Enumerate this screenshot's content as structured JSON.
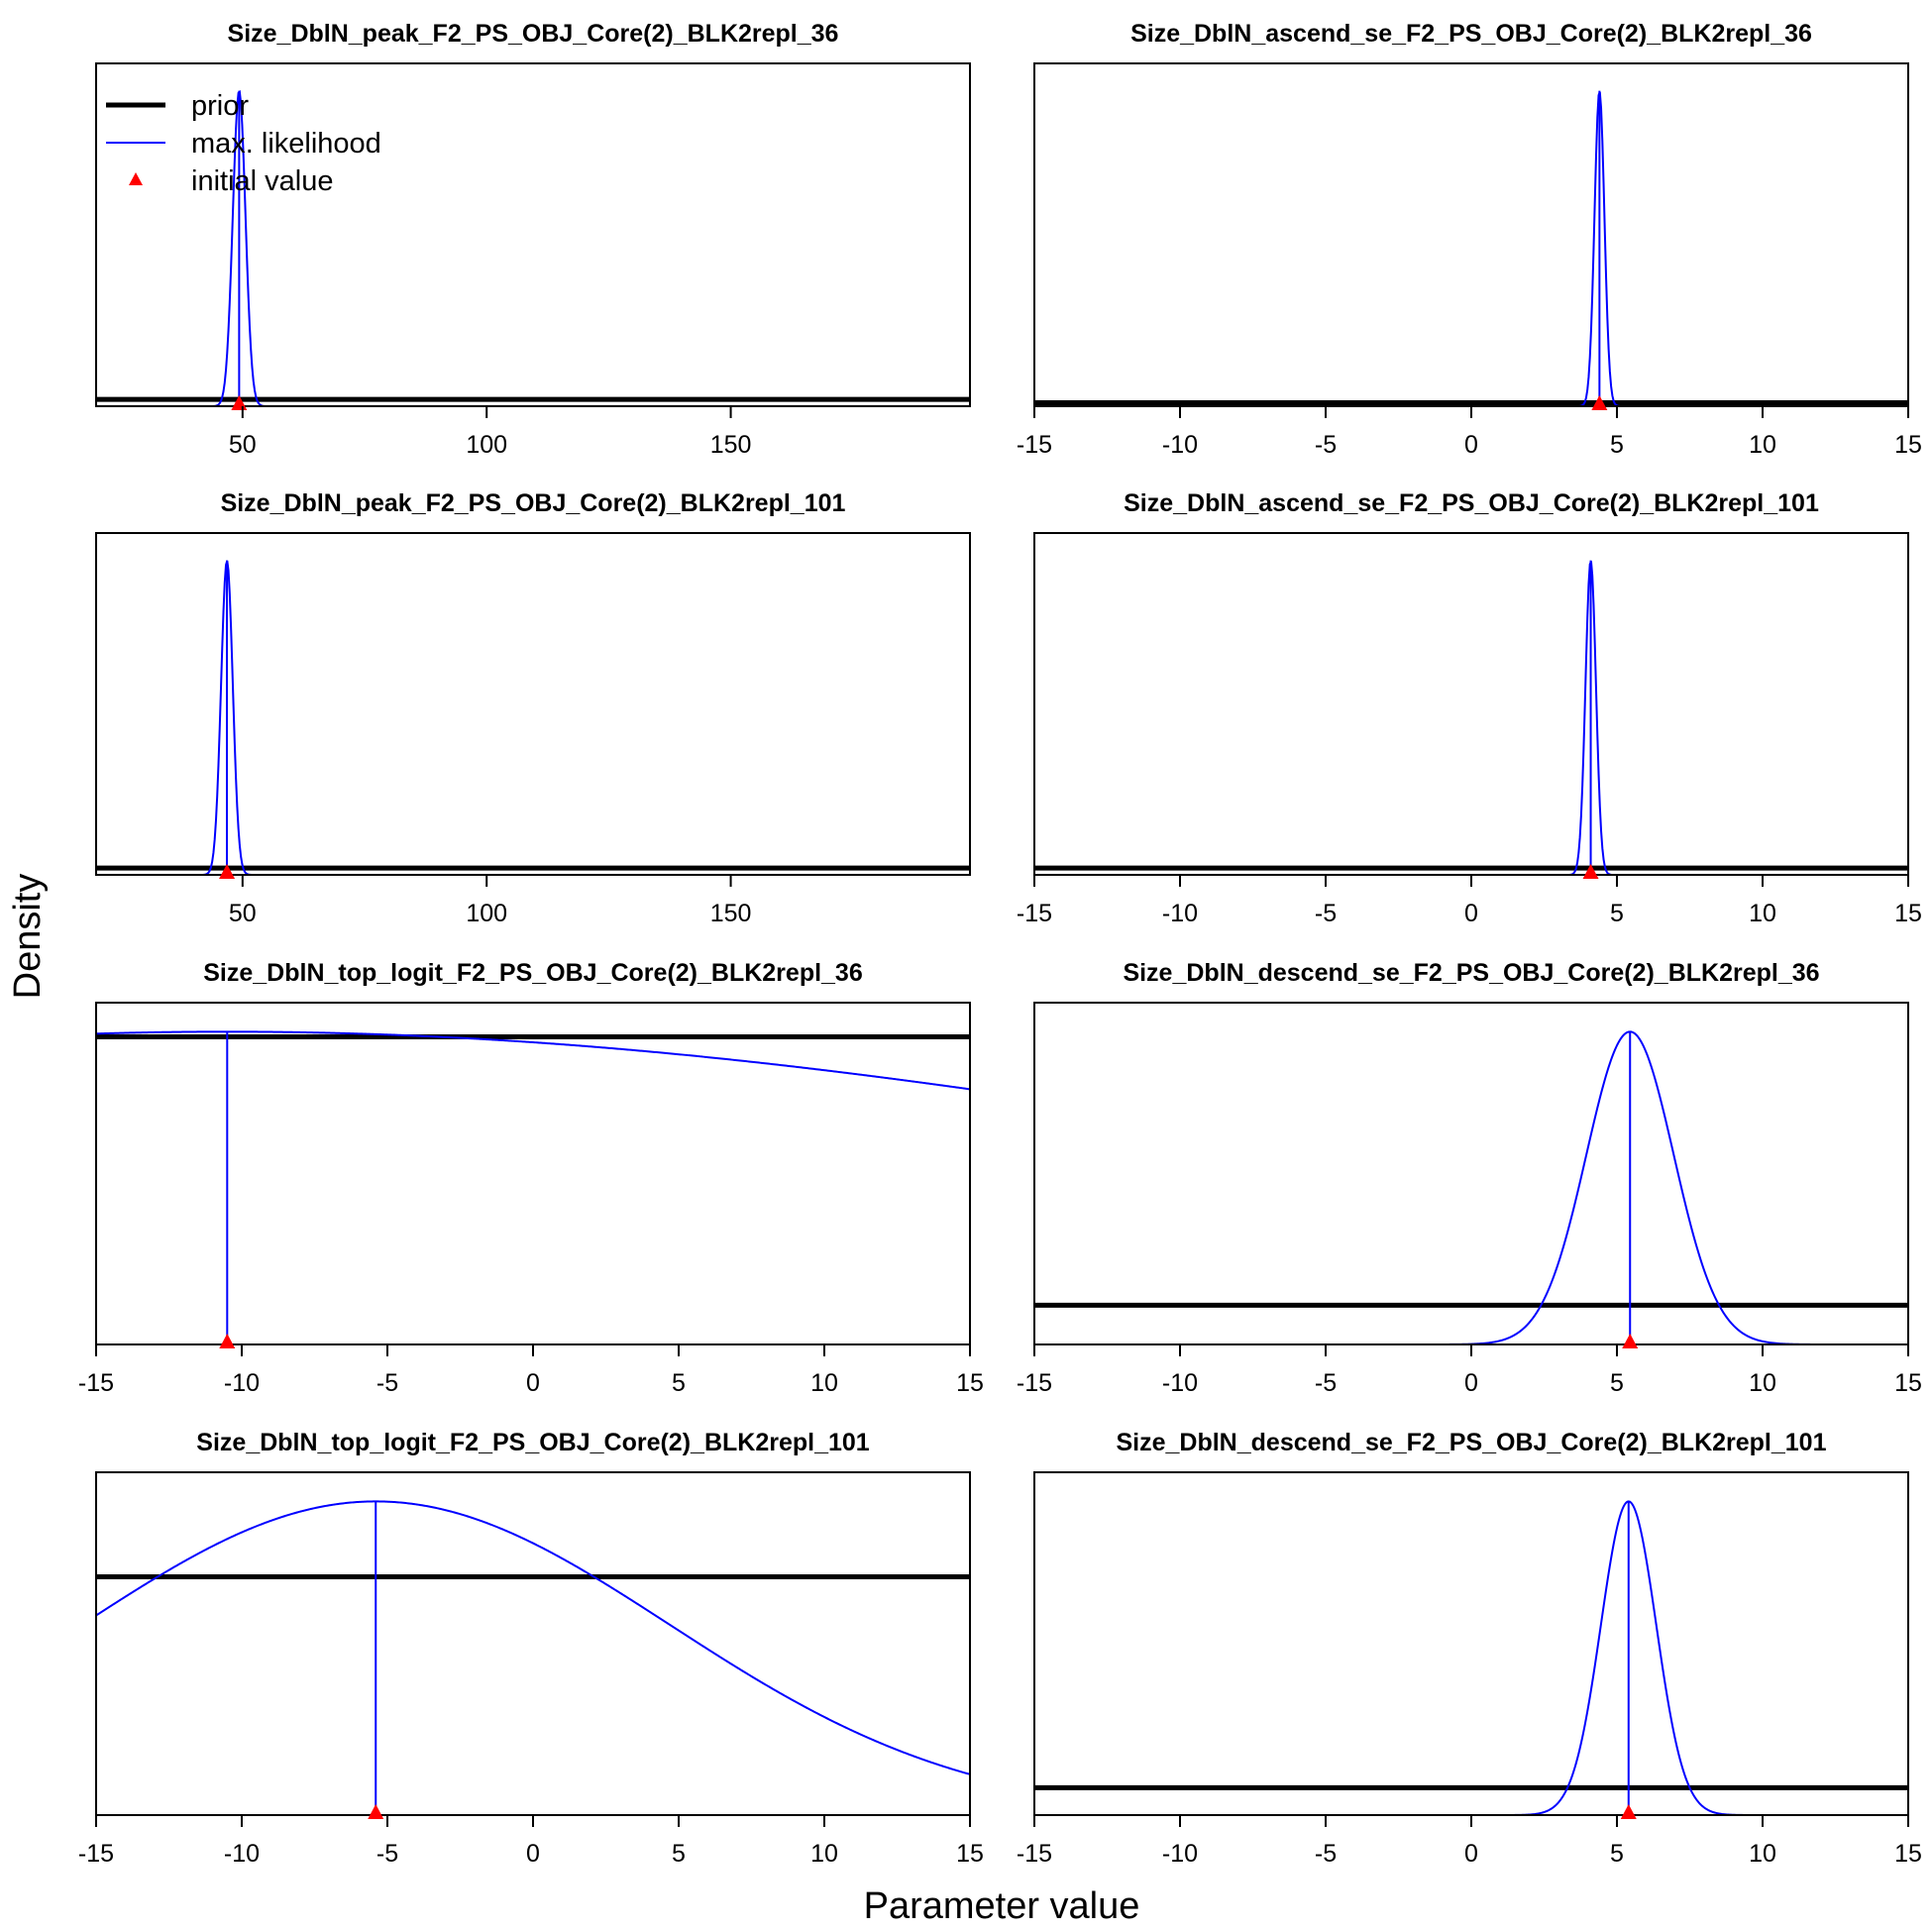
{
  "figure": {
    "ylabel": "Density",
    "xlabel": "Parameter value",
    "legend": {
      "placement": "top-left of first panel",
      "items": [
        {
          "label": "prior",
          "kind": "line",
          "color": "#000000",
          "width": "thick"
        },
        {
          "label": "max. likelihood",
          "kind": "line",
          "color": "#0000FF",
          "width": "thin"
        },
        {
          "label": "initial value",
          "kind": "triangle",
          "color": "#FF0000"
        }
      ]
    },
    "colors": {
      "prior": "#000000",
      "mle": "#0000FF",
      "initial": "#FF0000"
    }
  },
  "chart_data": [
    {
      "type": "line",
      "title": "Size_DblN_peak_F2_PS_OBJ_Core(2)_BLK2repl_36",
      "xlim": [
        20,
        199
      ],
      "xticks": [
        50,
        100,
        150
      ],
      "tick_labels": [
        "50",
        "100",
        "150"
      ],
      "grid": false,
      "prior": {
        "type": "uniform",
        "height_frac": 0.02
      },
      "mle": {
        "mean": 49.3,
        "sd": 1.3,
        "height_frac": 0.92
      },
      "initial_value": 49.3
    },
    {
      "type": "line",
      "title": "Size_DblN_ascend_se_F2_PS_OBJ_Core(2)_BLK2repl_36",
      "xlim": [
        -15,
        15
      ],
      "xticks": [
        -15,
        -10,
        -5,
        0,
        5,
        10,
        15
      ],
      "tick_labels": [
        "-15",
        "-10",
        "-5",
        "0",
        "5",
        "10",
        "15"
      ],
      "grid": false,
      "prior": {
        "type": "uniform",
        "height_frac": 0.01
      },
      "mle": {
        "mean": 4.4,
        "sd": 0.17,
        "height_frac": 0.92
      },
      "initial_value": 4.4
    },
    {
      "type": "line",
      "title": "Size_DblN_peak_F2_PS_OBJ_Core(2)_BLK2repl_101",
      "xlim": [
        20,
        199
      ],
      "xticks": [
        50,
        100,
        150
      ],
      "tick_labels": [
        "50",
        "100",
        "150"
      ],
      "grid": false,
      "prior": {
        "type": "uniform",
        "height_frac": 0.02
      },
      "mle": {
        "mean": 46.8,
        "sd": 1.2,
        "height_frac": 0.92
      },
      "initial_value": 46.8
    },
    {
      "type": "line",
      "title": "Size_DblN_ascend_se_F2_PS_OBJ_Core(2)_BLK2repl_101",
      "xlim": [
        -15,
        15
      ],
      "xticks": [
        -15,
        -10,
        -5,
        0,
        5,
        10,
        15
      ],
      "tick_labels": [
        "-15",
        "-10",
        "-5",
        "0",
        "5",
        "10",
        "15"
      ],
      "grid": false,
      "prior": {
        "type": "uniform",
        "height_frac": 0.02
      },
      "mle": {
        "mean": 4.1,
        "sd": 0.18,
        "height_frac": 0.92
      },
      "initial_value": 4.1
    },
    {
      "type": "line",
      "title": "Size_DblN_top_logit_F2_PS_OBJ_Core(2)_BLK2repl_36",
      "xlim": [
        -15,
        15
      ],
      "xticks": [
        -15,
        -10,
        -5,
        0,
        5,
        10,
        15
      ],
      "tick_labels": [
        "-15",
        "-10",
        "-5",
        "0",
        "5",
        "10",
        "15"
      ],
      "grid": false,
      "prior": {
        "type": "uniform",
        "height_frac": 0.9
      },
      "mle": {
        "mean": -10.5,
        "sd": 40,
        "height_frac": 0.915
      },
      "initial_value": -10.5
    },
    {
      "type": "line",
      "title": "Size_DblN_descend_se_F2_PS_OBJ_Core(2)_BLK2repl_36",
      "xlim": [
        -15,
        15
      ],
      "xticks": [
        -15,
        -10,
        -5,
        0,
        5,
        10,
        15
      ],
      "tick_labels": [
        "-15",
        "-10",
        "-5",
        "0",
        "5",
        "10",
        "15"
      ],
      "grid": false,
      "prior": {
        "type": "uniform",
        "height_frac": 0.115
      },
      "mle": {
        "mean": 5.45,
        "sd": 1.5,
        "height_frac": 0.915
      },
      "initial_value": 5.45
    },
    {
      "type": "line",
      "title": "Size_DblN_top_logit_F2_PS_OBJ_Core(2)_BLK2repl_101",
      "xlim": [
        -15,
        15
      ],
      "xticks": [
        -15,
        -10,
        -5,
        0,
        5,
        10,
        15
      ],
      "tick_labels": [
        "-15",
        "-10",
        "-5",
        "0",
        "5",
        "10",
        "15"
      ],
      "grid": false,
      "prior": {
        "type": "uniform",
        "height_frac": 0.695
      },
      "mle": {
        "mean": -5.4,
        "sd": 10.1,
        "height_frac": 0.915
      },
      "initial_value": -5.4
    },
    {
      "type": "line",
      "title": "Size_DblN_descend_se_F2_PS_OBJ_Core(2)_BLK2repl_101",
      "xlim": [
        -15,
        15
      ],
      "xticks": [
        -15,
        -10,
        -5,
        0,
        5,
        10,
        15
      ],
      "tick_labels": [
        "-15",
        "-10",
        "-5",
        "0",
        "5",
        "10",
        "15"
      ],
      "grid": false,
      "prior": {
        "type": "uniform",
        "height_frac": 0.08
      },
      "mle": {
        "mean": 5.4,
        "sd": 0.95,
        "height_frac": 0.915
      },
      "initial_value": 5.4
    }
  ]
}
